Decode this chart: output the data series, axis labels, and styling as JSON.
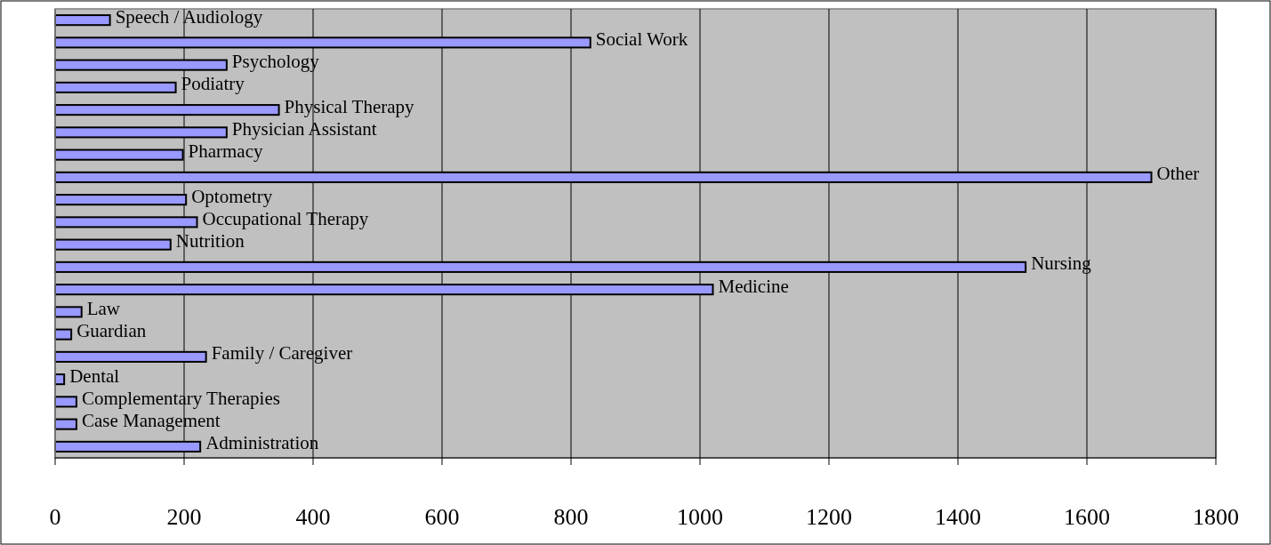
{
  "chart_data": {
    "type": "bar",
    "orientation": "horizontal",
    "categories": [
      "Speech / Audiology",
      "Social Work",
      "Psychology",
      "Podiatry",
      "Physical Therapy",
      "Physician Assistant",
      "Pharmacy",
      "Other",
      "Optometry",
      "Occupational Therapy",
      "Nutrition",
      "Nursing",
      "Medicine",
      "Law",
      "Guardian",
      "Family / Caregiver",
      "Dental",
      "Complementary Therapies",
      "Case Management",
      "Administration"
    ],
    "values": [
      85,
      830,
      266,
      187,
      347,
      266,
      198,
      1700,
      203,
      220,
      179,
      1505,
      1020,
      41,
      25,
      234,
      14,
      33,
      33,
      225
    ],
    "color": "#9999ff",
    "xlim": [
      0,
      1800
    ],
    "xticks": [
      0,
      200,
      400,
      600,
      800,
      1000,
      1200,
      1400,
      1600,
      1800
    ],
    "grid": "x"
  }
}
